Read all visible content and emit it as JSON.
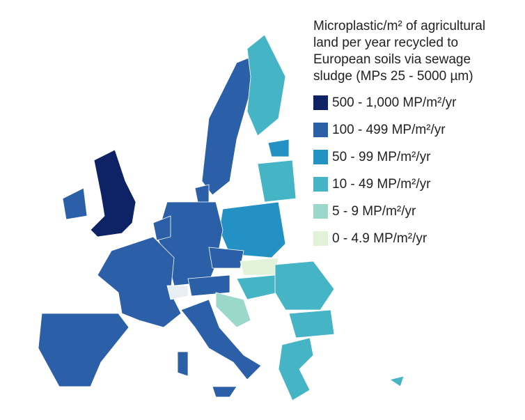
{
  "legend": {
    "title_lines": [
      "Microplastic/m² of agricultural",
      "land per year recycled to",
      "European soils via sewage",
      "sludge (MPs 25 - 5000 µm)"
    ],
    "items": [
      {
        "label": "500 - 1,000 MP/m²/yr",
        "color": "#0d2366"
      },
      {
        "label": "100 - 499 MP/m²/yr",
        "color": "#2b5fa8"
      },
      {
        "label": "50 - 99 MP/m²/yr",
        "color": "#2391c3"
      },
      {
        "label": "10 - 49 MP/m²/yr",
        "color": "#45b5c6"
      },
      {
        "label": "5 - 9 MP/m²/yr",
        "color": "#9bd8cc"
      },
      {
        "label": "0 - 4.9 MP/m²/yr",
        "color": "#e2f2d8"
      }
    ]
  }
}
